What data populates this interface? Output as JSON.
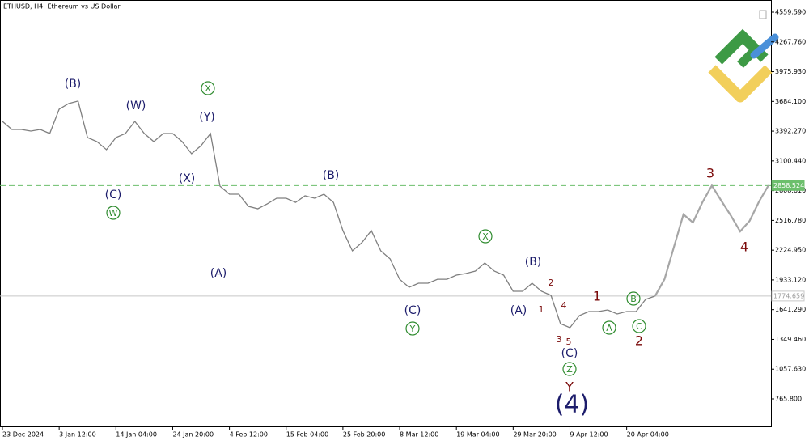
{
  "chart_data": {
    "type": "line",
    "title": "ETHUSD, H4:  Ethereum vs US Dollar",
    "categories": [
      "23 Dec 2024",
      null,
      null,
      null,
      null,
      null,
      "3 Jan 12:00",
      null,
      null,
      null,
      null,
      null,
      "14 Jan 04:00",
      null,
      null,
      null,
      null,
      null,
      "24 Jan 20:00",
      null,
      null,
      null,
      null,
      null,
      "4 Feb 12:00",
      null,
      null,
      null,
      null,
      null,
      "15 Feb 04:00",
      null,
      null,
      null,
      null,
      null,
      "25 Feb 20:00",
      null,
      null,
      null,
      null,
      null,
      "8 Mar 12:00",
      null,
      null,
      null,
      null,
      null,
      "19 Mar 04:00",
      null,
      null,
      null,
      null,
      null,
      "29 Mar 20:00",
      null,
      null,
      null,
      null,
      null,
      "9 Apr 12:00",
      null,
      null,
      null,
      null,
      null,
      "20 Apr 04:00",
      null,
      null,
      null,
      null,
      null,
      null,
      null,
      null,
      null,
      null,
      null,
      null,
      null,
      null,
      null
    ],
    "series": [
      {
        "color": "#7f7f7f",
        "values": [
          3488,
          3409,
          3409,
          3393,
          3409,
          3369,
          3607,
          3663,
          3687,
          3329,
          3290,
          3210,
          3329,
          3369,
          3488,
          3369,
          3290,
          3369,
          3369,
          3290,
          3171,
          3250,
          3369,
          2853,
          2774,
          2774,
          2655,
          2631,
          2679,
          2734,
          2734,
          2694,
          2758,
          2734,
          2774,
          2694,
          2417,
          2218,
          2298,
          2417,
          2218,
          2139,
          1940,
          1861,
          1901,
          1901,
          1940,
          1940,
          1980,
          1996,
          2020,
          2099,
          2020,
          1980,
          1821,
          1821,
          1901,
          1821,
          1782,
          1504,
          1464,
          1583,
          1623,
          1623,
          1639,
          1599,
          1623,
          1623,
          1742,
          1774.659,
          null,
          null,
          null,
          null,
          null,
          null,
          null,
          null,
          null,
          null,
          null,
          null
        ]
      },
      {
        "color": "#a6a6a6",
        "values": [
          null,
          null,
          null,
          null,
          null,
          null,
          null,
          null,
          null,
          null,
          null,
          null,
          null,
          null,
          null,
          null,
          null,
          null,
          null,
          null,
          null,
          null,
          null,
          null,
          null,
          null,
          null,
          null,
          null,
          null,
          null,
          null,
          null,
          null,
          null,
          null,
          null,
          null,
          null,
          null,
          null,
          null,
          null,
          null,
          null,
          null,
          null,
          null,
          null,
          null,
          null,
          null,
          null,
          null,
          null,
          null,
          null,
          null,
          null,
          null,
          null,
          null,
          null,
          null,
          null,
          null,
          null,
          null,
          null,
          1774.659,
          1940,
          2258,
          2575,
          2496,
          2694,
          2858,
          2710,
          2567,
          2409,
          2512,
          2702,
          2861
        ]
      }
    ],
    "ylim": [
      495.9,
      4678.6
    ],
    "yticks": [
      {
        "value": 4559.59,
        "label": "4559.590"
      },
      {
        "value": 4267.76,
        "label": "4267.760"
      },
      {
        "value": 3975.93,
        "label": "3975.930"
      },
      {
        "value": 3684.1,
        "label": "3684.100"
      },
      {
        "value": 3392.27,
        "label": "3392.270"
      },
      {
        "value": 3100.44,
        "label": "3100.440"
      },
      {
        "value": 2808.61,
        "label": "2808.610"
      },
      {
        "value": 2516.78,
        "label": "2516.780"
      },
      {
        "value": 2224.95,
        "label": "2224.950"
      },
      {
        "value": 1933.12,
        "label": "1933.120"
      },
      {
        "value": 1641.29,
        "label": "1641.290"
      },
      {
        "value": 1349.46,
        "label": "1349.460"
      },
      {
        "value": 1057.63,
        "label": "1057.630"
      },
      {
        "value": 765.8,
        "label": "765.800"
      }
    ],
    "levels": [
      {
        "value": 2858.524,
        "color": "#6cbf6c",
        "dashed": true
      },
      {
        "value": 1774.659,
        "color": "#c8c8c8",
        "dashed": false
      }
    ],
    "annotations": [
      {
        "text": "(B)",
        "style": "navy"
      },
      {
        "text": "(W)",
        "style": "navy"
      },
      {
        "text": "(C)",
        "style": "navy"
      },
      {
        "text": "W",
        "style": "green-circle"
      },
      {
        "text": "X",
        "style": "green-circle"
      },
      {
        "text": "(Y)",
        "style": "navy"
      },
      {
        "text": "(X)",
        "style": "navy"
      },
      {
        "text": "(A)",
        "style": "navy"
      },
      {
        "text": "(B)",
        "style": "navy"
      },
      {
        "text": "X",
        "style": "green-circle"
      },
      {
        "text": "(C)",
        "style": "navy"
      },
      {
        "text": "Y",
        "style": "green-circle"
      },
      {
        "text": "(B)",
        "style": "navy"
      },
      {
        "text": "(A)",
        "style": "navy"
      },
      {
        "text": "2",
        "style": "red-small"
      },
      {
        "text": "1",
        "style": "red-small"
      },
      {
        "text": "4",
        "style": "red-small"
      },
      {
        "text": "3",
        "style": "red-small"
      },
      {
        "text": "5",
        "style": "red-small"
      },
      {
        "text": "(C)",
        "style": "navy"
      },
      {
        "text": "Z",
        "style": "green-circle"
      },
      {
        "text": "Y",
        "style": "red"
      },
      {
        "text": "(4)",
        "style": "navy-large"
      },
      {
        "text": "1",
        "style": "red"
      },
      {
        "text": "A",
        "style": "green-circle"
      },
      {
        "text": "B",
        "style": "green-circle"
      },
      {
        "text": "C",
        "style": "green-circle"
      },
      {
        "text": "2",
        "style": "red"
      },
      {
        "text": "3",
        "style": "red"
      },
      {
        "text": "4",
        "style": "red"
      }
    ]
  }
}
